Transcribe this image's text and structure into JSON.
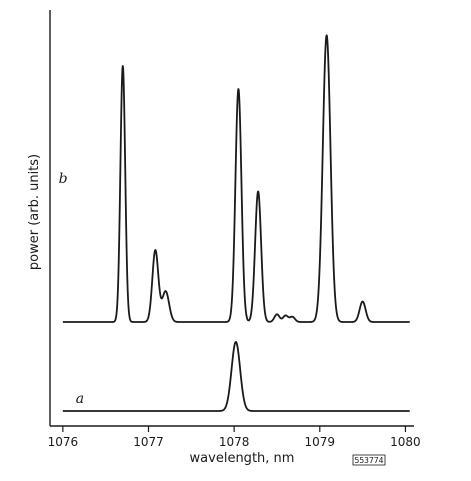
{
  "chart_data": {
    "type": "line",
    "xlabel": "wavelength, nm",
    "ylabel": "power (arb. units)",
    "xlim": [
      1075.85,
      1080.1
    ],
    "xticks": [
      1076,
      1077,
      1078,
      1079,
      1080
    ],
    "ytick_labels": [],
    "grid": false,
    "figure_tag": "553774",
    "series": [
      {
        "name": "b",
        "baseline": 0,
        "peaks": [
          {
            "x": 1076.7,
            "height": 1.0,
            "width": 0.028
          },
          {
            "x": 1077.08,
            "height": 0.28,
            "width": 0.035
          },
          {
            "x": 1077.2,
            "height": 0.12,
            "width": 0.04
          },
          {
            "x": 1078.05,
            "height": 0.91,
            "width": 0.035
          },
          {
            "x": 1078.28,
            "height": 0.51,
            "width": 0.035
          },
          {
            "x": 1078.5,
            "height": 0.03,
            "width": 0.03
          },
          {
            "x": 1078.6,
            "height": 0.025,
            "width": 0.03
          },
          {
            "x": 1078.68,
            "height": 0.02,
            "width": 0.03
          },
          {
            "x": 1079.08,
            "height": 1.12,
            "width": 0.045
          },
          {
            "x": 1079.5,
            "height": 0.08,
            "width": 0.035
          }
        ]
      },
      {
        "name": "a",
        "baseline": 0,
        "peaks": [
          {
            "x": 1078.02,
            "height": 0.27,
            "width": 0.05
          }
        ]
      }
    ]
  }
}
